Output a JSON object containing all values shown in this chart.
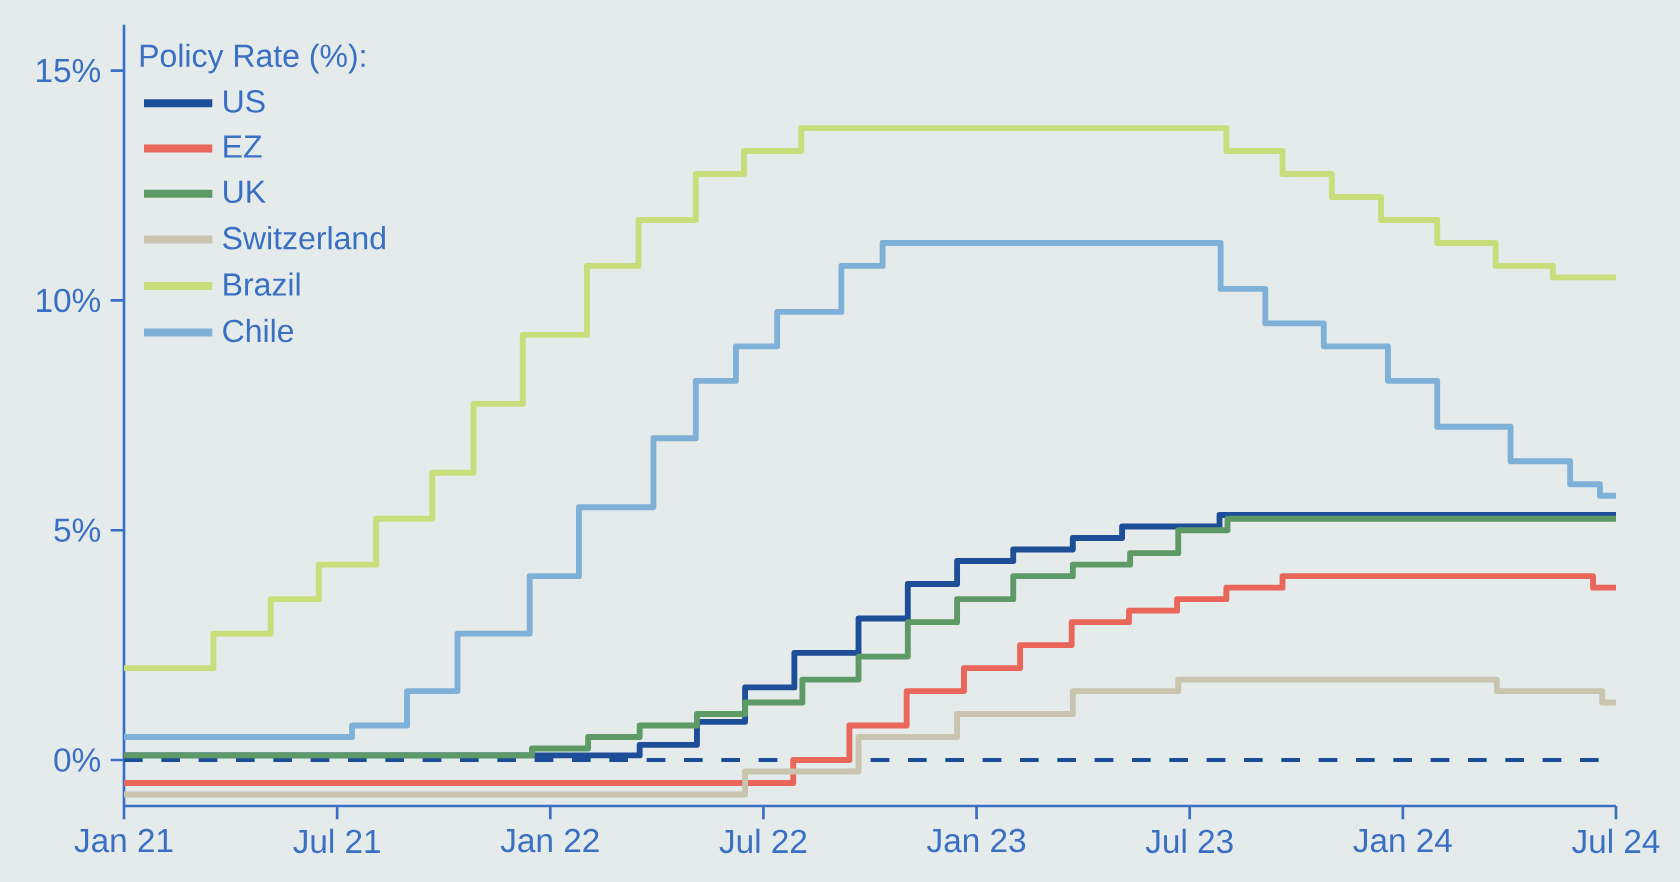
{
  "chart_data": {
    "type": "step",
    "legend_title": "Policy Rate (%):",
    "legend": "top left",
    "grid": false,
    "marker": "none",
    "line_style": "solid",
    "xlim": [
      "2021-01-01",
      "2024-07-01"
    ],
    "xticks": [
      {
        "value": "2021-01-01",
        "label": "Jan 21"
      },
      {
        "value": "2021-07-01",
        "label": "Jul 21"
      },
      {
        "value": "2022-01-01",
        "label": "Jan 22"
      },
      {
        "value": "2022-07-01",
        "label": "Jul 22"
      },
      {
        "value": "2023-01-01",
        "label": "Jan 23"
      },
      {
        "value": "2023-07-01",
        "label": "Jul 23"
      },
      {
        "value": "2024-01-01",
        "label": "Jan 24"
      },
      {
        "value": "2024-07-01",
        "label": "Jul 24"
      }
    ],
    "ylim": [
      -1,
      16
    ],
    "yticks": [
      {
        "value": 0,
        "label": "0%"
      },
      {
        "value": 5,
        "label": "5%"
      },
      {
        "value": 10,
        "label": "10%"
      },
      {
        "value": 15,
        "label": "15%"
      }
    ],
    "ref_lines": [
      {
        "axis": "y",
        "value": 0,
        "color": "#1f4e99",
        "line_style": "dashed"
      }
    ],
    "series": [
      {
        "name": "US",
        "color": "#1f4e99",
        "x": [
          "2021-01-01",
          "2022-03-17",
          "2022-05-05",
          "2022-06-16",
          "2022-07-28",
          "2022-09-22",
          "2022-11-03",
          "2022-12-15",
          "2023-02-02",
          "2023-03-23",
          "2023-05-04",
          "2023-07-27",
          "2024-07-01"
        ],
        "values": [
          0.1,
          0.33,
          0.83,
          1.58,
          2.33,
          3.08,
          3.83,
          4.33,
          4.58,
          4.83,
          5.08,
          5.33,
          5.33
        ]
      },
      {
        "name": "EZ",
        "color": "#e8665a",
        "x": [
          "2021-01-01",
          "2022-07-27",
          "2022-09-14",
          "2022-11-02",
          "2022-12-21",
          "2023-02-08",
          "2023-03-22",
          "2023-05-10",
          "2023-06-21",
          "2023-08-02",
          "2023-09-20",
          "2024-06-12",
          "2024-07-01"
        ],
        "values": [
          -0.5,
          0.0,
          0.75,
          1.5,
          2.0,
          2.5,
          3.0,
          3.25,
          3.5,
          3.75,
          4.0,
          3.75,
          3.75
        ]
      },
      {
        "name": "UK",
        "color": "#5e9a66",
        "x": [
          "2021-01-01",
          "2021-12-16",
          "2022-02-03",
          "2022-03-17",
          "2022-05-05",
          "2022-06-16",
          "2022-08-04",
          "2022-09-22",
          "2022-11-03",
          "2022-12-15",
          "2023-02-02",
          "2023-03-23",
          "2023-05-11",
          "2023-06-22",
          "2023-08-03",
          "2024-07-01"
        ],
        "values": [
          0.1,
          0.25,
          0.5,
          0.75,
          1.0,
          1.25,
          1.75,
          2.25,
          3.0,
          3.5,
          4.0,
          4.25,
          4.5,
          5.0,
          5.25,
          5.25
        ]
      },
      {
        "name": "Switzerland",
        "color": "#c8c4ae",
        "x": [
          "2021-01-01",
          "2022-06-16",
          "2022-09-22",
          "2022-12-15",
          "2023-03-23",
          "2023-06-22",
          "2024-03-21",
          "2024-06-20",
          "2024-07-01"
        ],
        "values": [
          -0.75,
          -0.25,
          0.5,
          1.0,
          1.5,
          1.75,
          1.5,
          1.25,
          1.25
        ]
      },
      {
        "name": "Brazil",
        "color": "#c9dd7a",
        "x": [
          "2021-01-01",
          "2021-03-17",
          "2021-05-05",
          "2021-06-16",
          "2021-08-04",
          "2021-09-22",
          "2021-10-27",
          "2021-12-08",
          "2022-02-02",
          "2022-03-16",
          "2022-05-04",
          "2022-06-15",
          "2022-08-03",
          "2023-08-02",
          "2023-09-20",
          "2023-11-01",
          "2023-12-13",
          "2024-01-31",
          "2024-03-20",
          "2024-05-08",
          "2024-07-01"
        ],
        "values": [
          2.0,
          2.75,
          3.5,
          4.25,
          5.25,
          6.25,
          7.75,
          9.25,
          10.75,
          11.75,
          12.75,
          13.25,
          13.75,
          13.25,
          12.75,
          12.25,
          11.75,
          11.25,
          10.75,
          10.5,
          10.5
        ]
      },
      {
        "name": "Chile",
        "color": "#7fb0d8",
        "x": [
          "2021-01-01",
          "2021-07-14",
          "2021-08-31",
          "2021-10-13",
          "2021-12-14",
          "2022-01-26",
          "2022-03-29",
          "2022-05-04",
          "2022-06-08",
          "2022-07-13",
          "2022-09-07",
          "2022-10-12",
          "2023-07-28",
          "2023-09-05",
          "2023-10-25",
          "2023-12-19",
          "2024-01-31",
          "2024-04-02",
          "2024-05-23",
          "2024-06-18",
          "2024-07-01"
        ],
        "values": [
          0.5,
          0.75,
          1.5,
          2.75,
          4.0,
          5.5,
          7.0,
          8.25,
          9.0,
          9.75,
          10.75,
          11.25,
          10.25,
          9.5,
          9.0,
          8.25,
          7.25,
          6.5,
          6.0,
          5.75,
          5.75
        ]
      }
    ]
  }
}
